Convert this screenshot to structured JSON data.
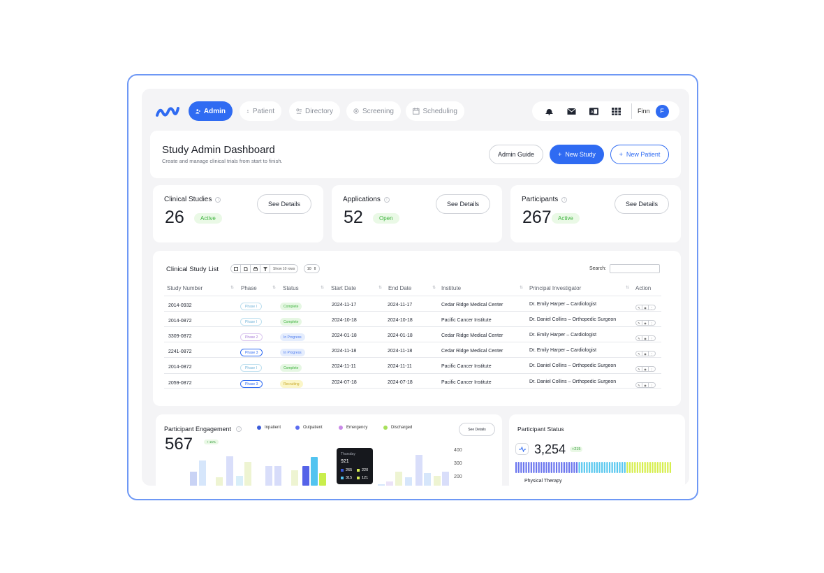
{
  "nav": {
    "items": [
      {
        "label": "Admin",
        "icon": "user-icon",
        "active": true
      },
      {
        "label": "Patient",
        "icon": "patient-icon"
      },
      {
        "label": "Directory",
        "icon": "directory-icon"
      },
      {
        "label": "Screening",
        "icon": "screening-icon"
      },
      {
        "label": "Scheduling",
        "icon": "calendar-icon"
      }
    ],
    "user_name": "Finn",
    "avatar_initial": "F"
  },
  "header": {
    "title": "Study Admin Dashboard",
    "subtitle": "Create and manage clinical trials from start to finish.",
    "guide_label": "Admin Guide",
    "new_study_label": "New Study",
    "new_patient_label": "New Patient"
  },
  "stats": [
    {
      "title": "Clinical Studies",
      "value": "26",
      "badge": "Active",
      "button": "See Details"
    },
    {
      "title": "Applications",
      "value": "52",
      "badge": "Open",
      "button": "See Details"
    },
    {
      "title": "Participants",
      "value": "267",
      "badge": "Active",
      "button": "See Details"
    }
  ],
  "table": {
    "title": "Clinical Study List",
    "show_rows_label": "Show 10 rows",
    "rows_select": "10",
    "search_label": "Search:",
    "columns": [
      "Study Number",
      "Phase",
      "Status",
      "Start Date",
      "End Date",
      "Institute",
      "Principal Investigator",
      "Action"
    ],
    "rows": [
      {
        "number": "2014-0932",
        "phase": "Phase I",
        "status": "Complete",
        "start": "2024-11-17",
        "end": "2024-11-17",
        "institute": "Cedar Ridge Medical Center",
        "pi": "Dr. Emily Harper – Cardiologist"
      },
      {
        "number": "2014-0872",
        "phase": "Phase I",
        "status": "Complete",
        "start": "2024-10-18",
        "end": "2024-10-18",
        "institute": "Pacific Cancer Institute",
        "pi": "Dr. Daniel Collins – Orthopedic Surgeon"
      },
      {
        "number": "3309-0872",
        "phase": "Phase 2",
        "status": "In Progress",
        "start": "2024-01-18",
        "end": "2024-01-18",
        "institute": "Cedar Ridge Medical Center",
        "pi": "Dr. Emily Harper – Cardiologist"
      },
      {
        "number": "2241-0872",
        "phase": "Phase 3",
        "status": "In Progress",
        "start": "2024-11-18",
        "end": "2024-11-18",
        "institute": "Cedar Ridge Medical Center",
        "pi": "Dr. Emily Harper – Cardiologist"
      },
      {
        "number": "2014-0872",
        "phase": "Phase I",
        "status": "Complete",
        "start": "2024-11-11",
        "end": "2024-11-11",
        "institute": "Pacific Cancer Institute",
        "pi": "Dr. Daniel Collins – Orthopedic Surgeon"
      },
      {
        "number": "2059-0872",
        "phase": "Phase 3",
        "status": "Recruiting",
        "start": "2024-07-18",
        "end": "2024-07-18",
        "institute": "Pacific Cancer Institute",
        "pi": "Dr. Daniel Collins – Orthopedic Surgeon"
      }
    ]
  },
  "engagement": {
    "title": "Participant Engagement",
    "value": "567",
    "badge": "+ 15%",
    "button": "See Details",
    "legend": [
      {
        "label": "Inpatient",
        "color": "#3a5bd9"
      },
      {
        "label": "Outpatient",
        "color": "#5b6cf0"
      },
      {
        "label": "Emergency",
        "color": "#c98ae8"
      },
      {
        "label": "Discharged",
        "color": "#a7e05a"
      }
    ],
    "y_ticks": [
      "400",
      "300",
      "200"
    ],
    "tooltip": {
      "day": "Thursday",
      "total": "921",
      "items": [
        {
          "value": "265",
          "color": "#3a5bd9"
        },
        {
          "value": "220",
          "color": "#d8ee55"
        },
        {
          "value": "315",
          "color": "#52c4f0"
        },
        {
          "value": "121",
          "color": "#d8ee55"
        }
      ]
    }
  },
  "participant_status": {
    "title": "Participant Status",
    "value": "3,254",
    "badge": "+215",
    "subtitle": "Physical Therapy"
  },
  "colors": {
    "accent": "#2f6bf2",
    "frame": "#6e98f5"
  }
}
